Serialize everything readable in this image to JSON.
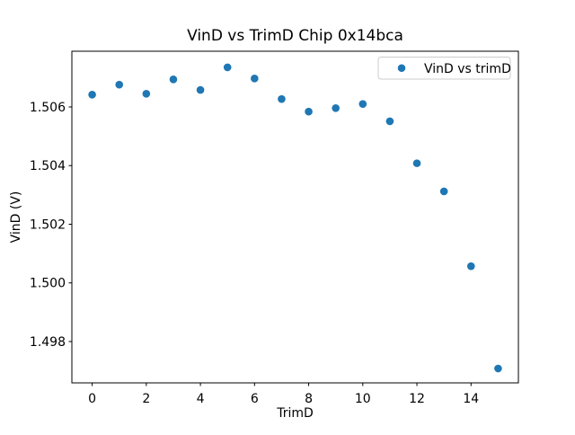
{
  "chart_data": {
    "type": "scatter",
    "title": "VinD vs TrimD Chip 0x14bca",
    "xlabel": "TrimD",
    "ylabel": "VinD (V)",
    "legend": {
      "label": "VinD vs trimD",
      "position": "upper right",
      "border_color": "#cccccc",
      "background": "#ffffff"
    },
    "series": [
      {
        "name": "VinD vs trimD",
        "marker": "circle",
        "color": "#1f77b4",
        "x": [
          0,
          1,
          2,
          3,
          4,
          5,
          6,
          7,
          8,
          9,
          10,
          11,
          12,
          13,
          14,
          15
        ],
        "y": [
          1.50642,
          1.50676,
          1.50645,
          1.50694,
          1.50658,
          1.50735,
          1.50697,
          1.50627,
          1.50584,
          1.50596,
          1.5061,
          1.50551,
          1.50408,
          1.50312,
          1.50057,
          1.49708
        ]
      }
    ],
    "xlim": [
      -0.75,
      15.75
    ],
    "ylim": [
      1.49659,
      1.5079
    ],
    "xticks": [
      0,
      2,
      4,
      6,
      8,
      10,
      12,
      14
    ],
    "xtick_labels": [
      "0",
      "2",
      "4",
      "6",
      "8",
      "10",
      "12",
      "14"
    ],
    "yticks": [
      1.506,
      1.504,
      1.502,
      1.5,
      1.498
    ],
    "ytick_labels": [
      "1.506",
      "1.504",
      "1.502",
      "1.500",
      "1.498"
    ],
    "grid": false,
    "colors": {
      "marker": "#1f77b4",
      "spine": "#000000",
      "text": "#000000",
      "background": "#ffffff"
    }
  }
}
